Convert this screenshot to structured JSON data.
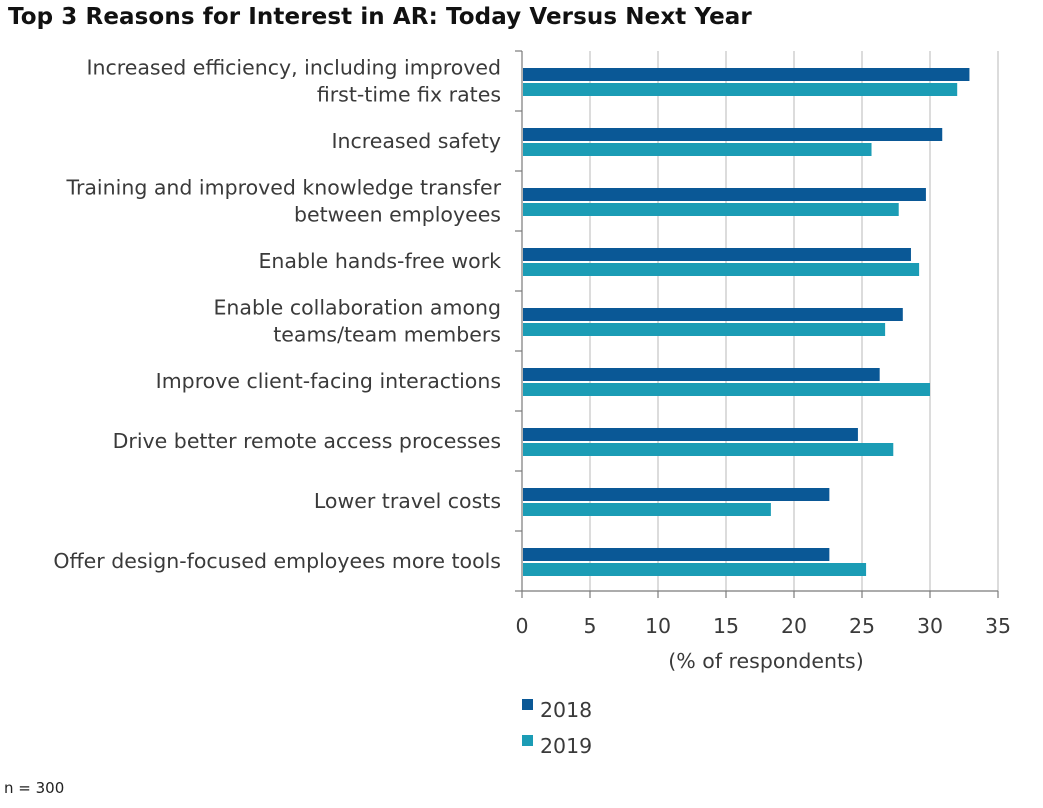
{
  "title": "Top 3 Reasons for Interest in AR: Today Versus Next Year",
  "footnote": "n = 300",
  "chart_data": {
    "type": "bar",
    "orientation": "horizontal",
    "categories": [
      [
        "Increased efficiency, including improved",
        "first-time fix rates"
      ],
      [
        "Increased safety"
      ],
      [
        "Training and improved knowledge transfer",
        "between employees"
      ],
      [
        "Enable hands-free work"
      ],
      [
        "Enable collaboration among",
        "teams/team members"
      ],
      [
        "Improve client-facing interactions"
      ],
      [
        "Drive better remote access processes"
      ],
      [
        "Lower travel costs"
      ],
      [
        "Offer design-focused employees more tools"
      ]
    ],
    "series": [
      {
        "name": "2018",
        "color": "#0a5896",
        "values": [
          32.9,
          30.9,
          29.7,
          28.6,
          28.0,
          26.3,
          24.7,
          22.6,
          22.6
        ]
      },
      {
        "name": "2019",
        "color": "#1b9cb5",
        "values": [
          32.0,
          25.7,
          27.7,
          29.2,
          26.7,
          30.0,
          27.3,
          18.3,
          25.3
        ]
      }
    ],
    "xlabel": "(% of respondents)",
    "xlim": [
      0,
      35
    ],
    "xticks": [
      0,
      5,
      10,
      15,
      20,
      25,
      30,
      35
    ],
    "grid": true,
    "legend_position": "bottom"
  }
}
